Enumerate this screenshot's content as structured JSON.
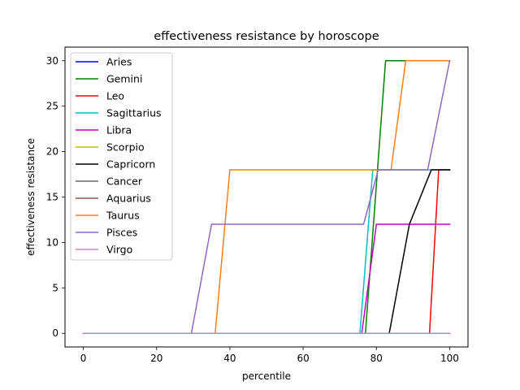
{
  "chart_data": {
    "type": "line",
    "title": "effectiveness resistance by horoscope",
    "xlabel": "percentile",
    "ylabel": "effectiveness resistance",
    "xlim": [
      -5,
      105
    ],
    "ylim": [
      -1.5,
      31.5
    ],
    "xticks": [
      0,
      20,
      40,
      60,
      80,
      100
    ],
    "yticks": [
      0,
      5,
      10,
      15,
      20,
      25,
      30
    ],
    "grid": false,
    "legend_position": "upper-left",
    "series": [
      {
        "name": "Aries",
        "color": "#0000ff",
        "x": [
          0,
          100
        ],
        "y": [
          0,
          0
        ]
      },
      {
        "name": "Gemini",
        "color": "#008000",
        "x": [
          0,
          77,
          82.5,
          100
        ],
        "y": [
          0,
          0,
          30,
          30
        ]
      },
      {
        "name": "Leo",
        "color": "#ff0000",
        "x": [
          0,
          94.5,
          97,
          100
        ],
        "y": [
          0,
          0,
          18,
          18
        ]
      },
      {
        "name": "Sagittarius",
        "color": "#00bfbf",
        "x": [
          0,
          75.5,
          79,
          100
        ],
        "y": [
          0,
          0,
          18,
          18
        ]
      },
      {
        "name": "Libra",
        "color": "#bf00bf",
        "x": [
          0,
          76,
          80,
          100
        ],
        "y": [
          0,
          0,
          12,
          12
        ]
      },
      {
        "name": "Scorpio",
        "color": "#bfbf00",
        "x": [
          0,
          100
        ],
        "y": [
          0,
          0
        ]
      },
      {
        "name": "Capricorn",
        "color": "#000000",
        "x": [
          0,
          83.5,
          89,
          95,
          100
        ],
        "y": [
          0,
          0,
          12,
          18,
          18
        ]
      },
      {
        "name": "Cancer",
        "color": "#666666",
        "x": [
          0,
          100
        ],
        "y": [
          0,
          0
        ]
      },
      {
        "name": "Aquarius",
        "color": "#8c564b",
        "x": [
          0,
          100
        ],
        "y": [
          0,
          0
        ]
      },
      {
        "name": "Taurus",
        "color": "#ff7f0e",
        "x": [
          0,
          36,
          40,
          84,
          88,
          100
        ],
        "y": [
          0,
          0,
          18,
          18,
          30,
          30
        ]
      },
      {
        "name": "Pisces",
        "color": "#9467bd",
        "x": [
          0,
          29.5,
          35,
          76.5,
          80.5,
          94,
          100
        ],
        "y": [
          0,
          0,
          12,
          12,
          18,
          18,
          30
        ]
      },
      {
        "name": "Virgo",
        "color": "#e377c2",
        "x": [
          0,
          100
        ],
        "y": [
          0,
          0
        ]
      }
    ]
  }
}
